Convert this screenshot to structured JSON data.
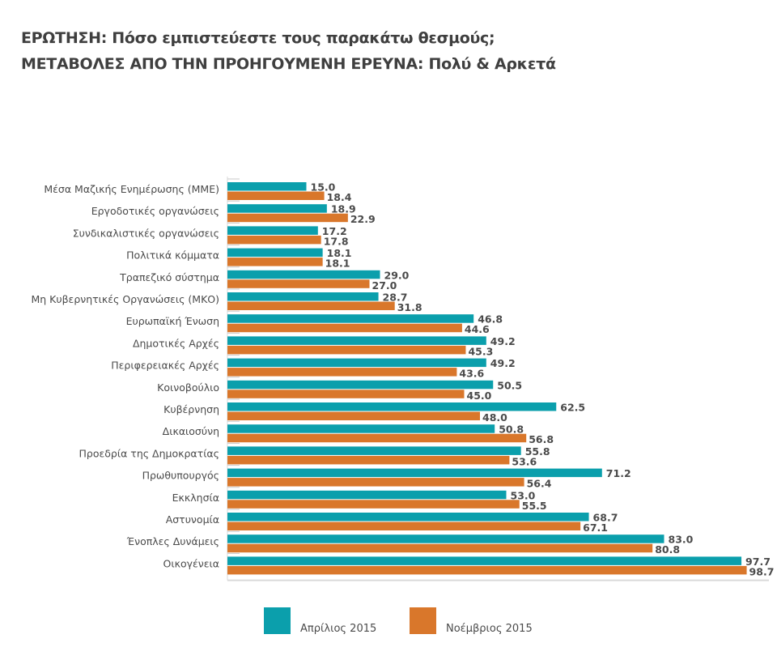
{
  "title_line1": "ΕΡΩΤΗΣΗ: Πόσο εμπιστεύεστε τους παρακάτω θεσμούς;",
  "title_line2": "ΜΕΤΑΒΟΛΕΣ ΑΠΟ ΤΗΝ ΠΡΟΗΓΟΥΜΕΝΗ ΕΡΕΥΝΑ: Πολύ & Αρκετά",
  "colors": {
    "april": "#0b9fac",
    "november": "#d9772b"
  },
  "chart_data": {
    "type": "bar",
    "orientation": "horizontal",
    "title": "ΕΡΩΤΗΣΗ: Πόσο εμπιστεύεστε τους παρακάτω θεσμούς; ΜΕΤΑΒΟΛΕΣ ΑΠΟ ΤΗΝ ΠΡΟΗΓΟΥΜΕΝΗ ΕΡΕΥΝΑ: Πολύ & Αρκετά",
    "xlabel": "",
    "ylabel": "",
    "xlim": [
      0,
      100
    ],
    "grid": false,
    "legend_position": "bottom",
    "categories": [
      "Μέσα Μαζικής Ενημέρωσης (ΜΜΕ)",
      "Εργοδοτικές οργανώσεις",
      "Συνδικαλιστικές οργανώσεις",
      "Πολιτικά κόμματα",
      "Τραπεζικό σύστημα",
      "Μη Κυβερνητικές Οργανώσεις (ΜΚΟ)",
      "Ευρωπαϊκή Ένωση",
      "Δημοτικές Αρχές",
      "Περιφερειακές Αρχές",
      "Κοινοβούλιο",
      "Κυβέρνηση",
      "Δικαιοσύνη",
      "Προεδρία της Δημοκρατίας",
      "Πρωθυπουργός",
      "Εκκλησία",
      "Αστυνομία",
      "Ένοπλες Δυνάμεις",
      "Οικογένεια"
    ],
    "series": [
      {
        "name": "Απρίλιος 2015",
        "color": "#0b9fac",
        "values": [
          15.0,
          18.9,
          17.2,
          18.1,
          29.0,
          28.7,
          46.8,
          49.2,
          49.2,
          50.5,
          62.5,
          50.8,
          55.8,
          71.2,
          53.0,
          68.7,
          83.0,
          97.7
        ]
      },
      {
        "name": "Νοέμβριος 2015",
        "color": "#d9772b",
        "values": [
          18.4,
          22.9,
          17.8,
          18.1,
          27.0,
          31.8,
          44.6,
          45.3,
          43.6,
          45.0,
          48.0,
          56.8,
          53.6,
          56.4,
          55.5,
          67.1,
          80.8,
          98.7
        ]
      }
    ]
  }
}
